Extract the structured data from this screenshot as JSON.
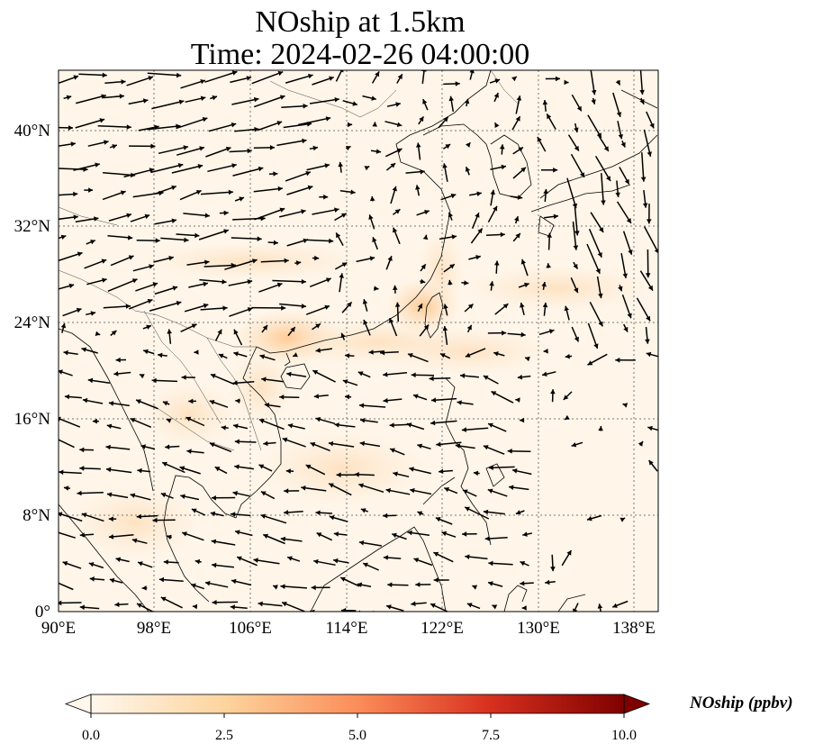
{
  "title": {
    "line1": "NOship at 1.5km",
    "line2": "Time: 2024-02-26 04:00:00"
  },
  "map": {
    "lon_range": [
      90,
      140
    ],
    "lat_range": [
      0,
      45
    ],
    "x_ticks": [
      "90°E",
      "98°E",
      "106°E",
      "114°E",
      "122°E",
      "130°E",
      "138°E"
    ],
    "y_ticks": [
      "0°",
      "8°N",
      "16°N",
      "24°N",
      "32°N",
      "40°N"
    ],
    "gridlines": true,
    "field": "NOship concentration shading",
    "vectors": "wind arrows"
  },
  "colorbar": {
    "label": "NOship (ppbv)",
    "ticks": [
      "0.0",
      "2.5",
      "5.0",
      "7.5",
      "10.0"
    ],
    "range": [
      0,
      10
    ],
    "extend": "both",
    "colormap": [
      "#fff7ec",
      "#fdd49e",
      "#fc8d59",
      "#d7301f",
      "#7f0000"
    ]
  }
}
